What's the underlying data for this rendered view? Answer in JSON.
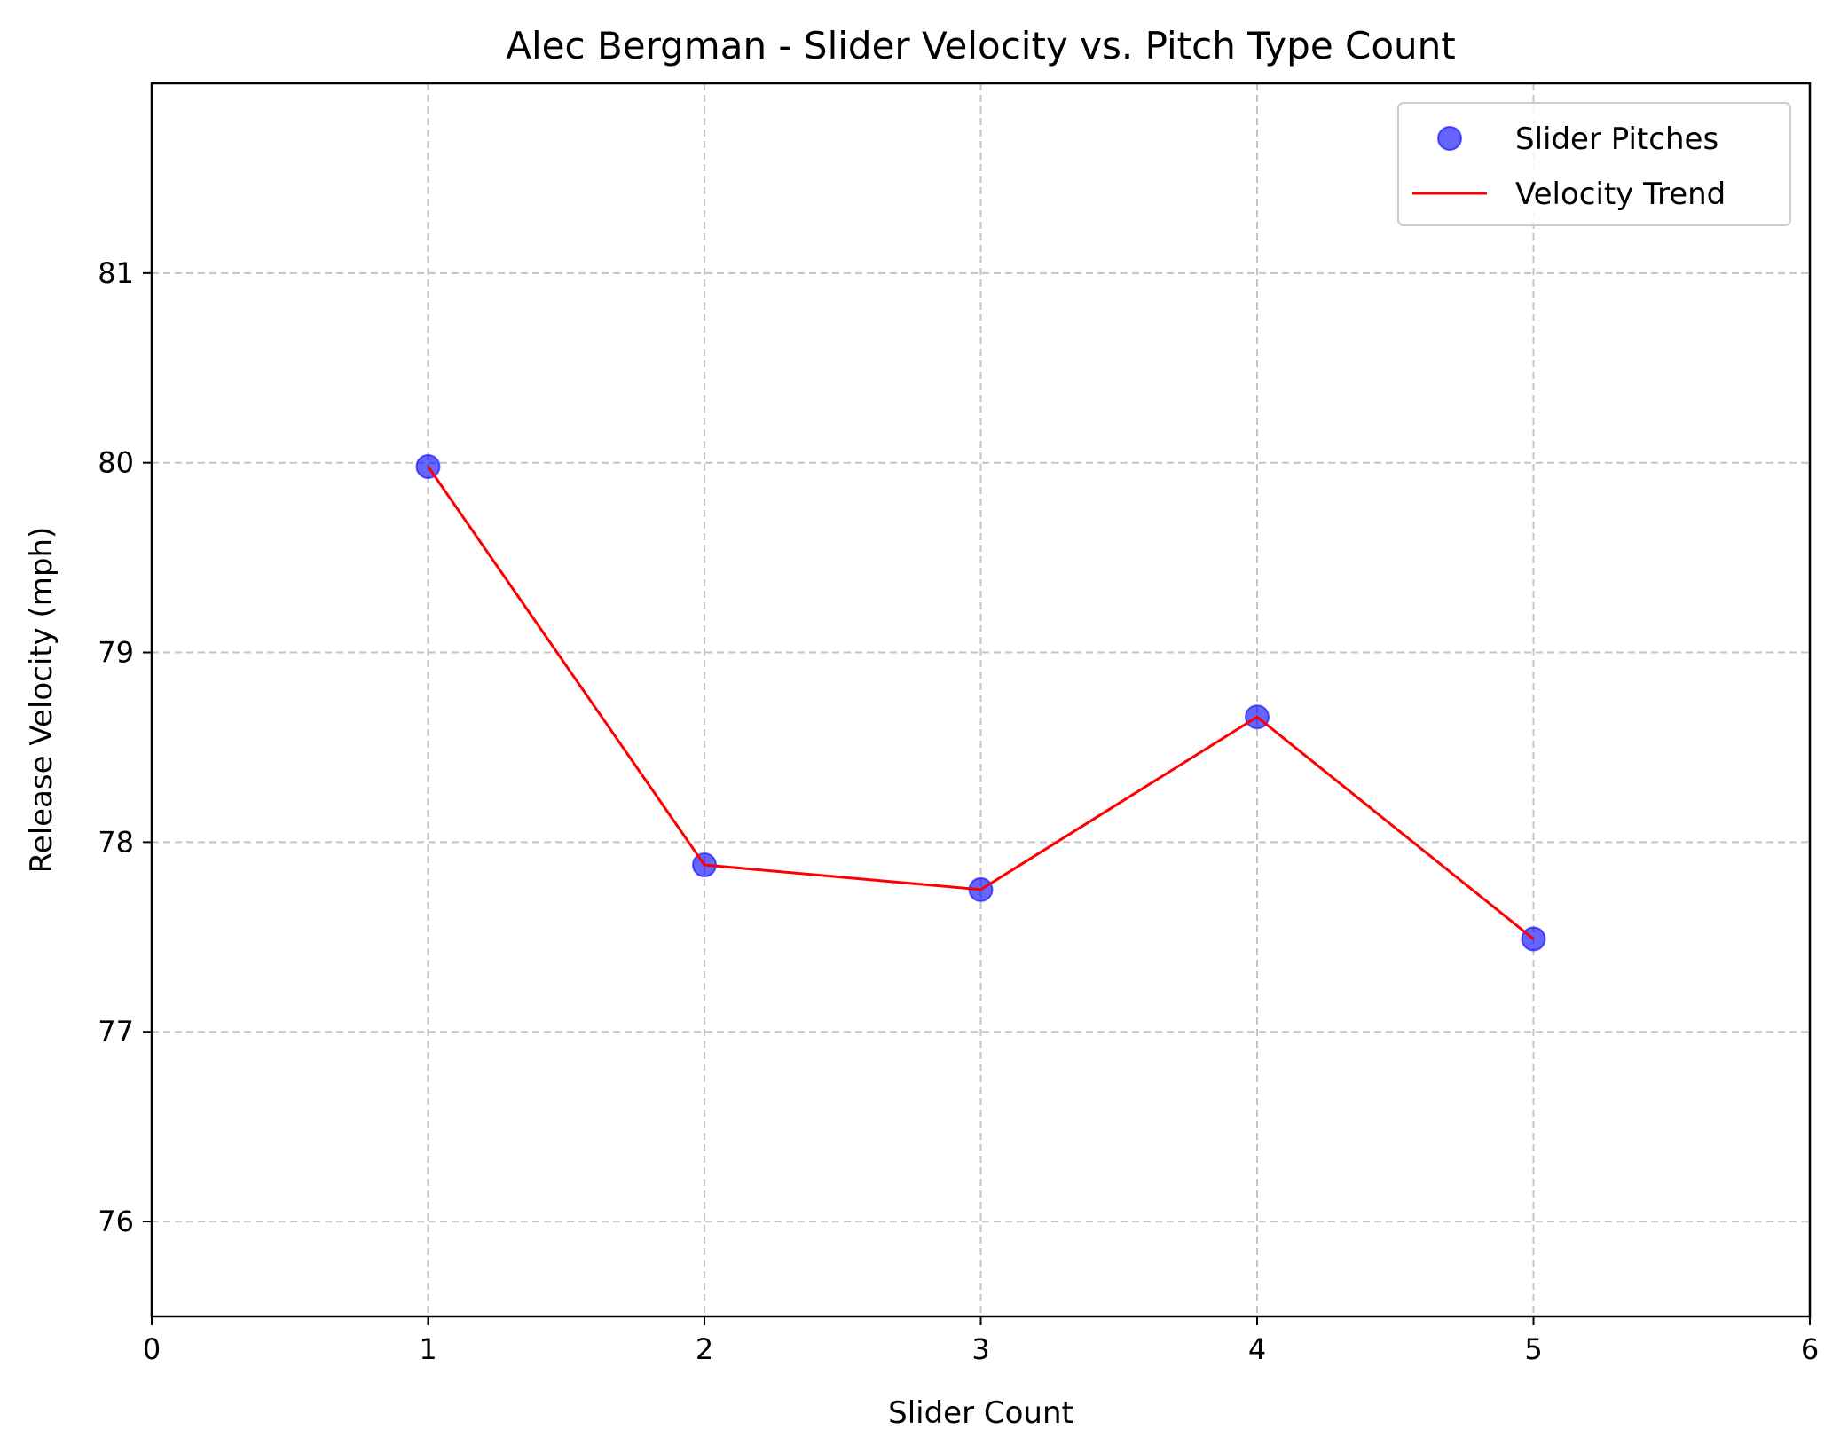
{
  "chart_data": {
    "type": "line",
    "title": "Alec Bergman - Slider Velocity vs. Pitch Type Count",
    "xlabel": "Slider Count",
    "ylabel": "Release Velocity (mph)",
    "xlim": [
      0,
      6
    ],
    "ylim": [
      75.5,
      82.0
    ],
    "xticks": [
      0,
      1,
      2,
      3,
      4,
      5,
      6
    ],
    "yticks": [
      76,
      77,
      78,
      79,
      80,
      81
    ],
    "grid": true,
    "legend_position": "top-right",
    "x": [
      1,
      2,
      3,
      4,
      5
    ],
    "series": [
      {
        "name": "Slider Pitches",
        "kind": "scatter",
        "color": "#0000ff",
        "values": [
          79.98,
          77.88,
          77.75,
          78.66,
          77.49
        ]
      },
      {
        "name": "Velocity Trend",
        "kind": "line",
        "color": "#ff0000",
        "values": [
          79.98,
          77.88,
          77.75,
          78.66,
          77.49
        ]
      }
    ]
  }
}
